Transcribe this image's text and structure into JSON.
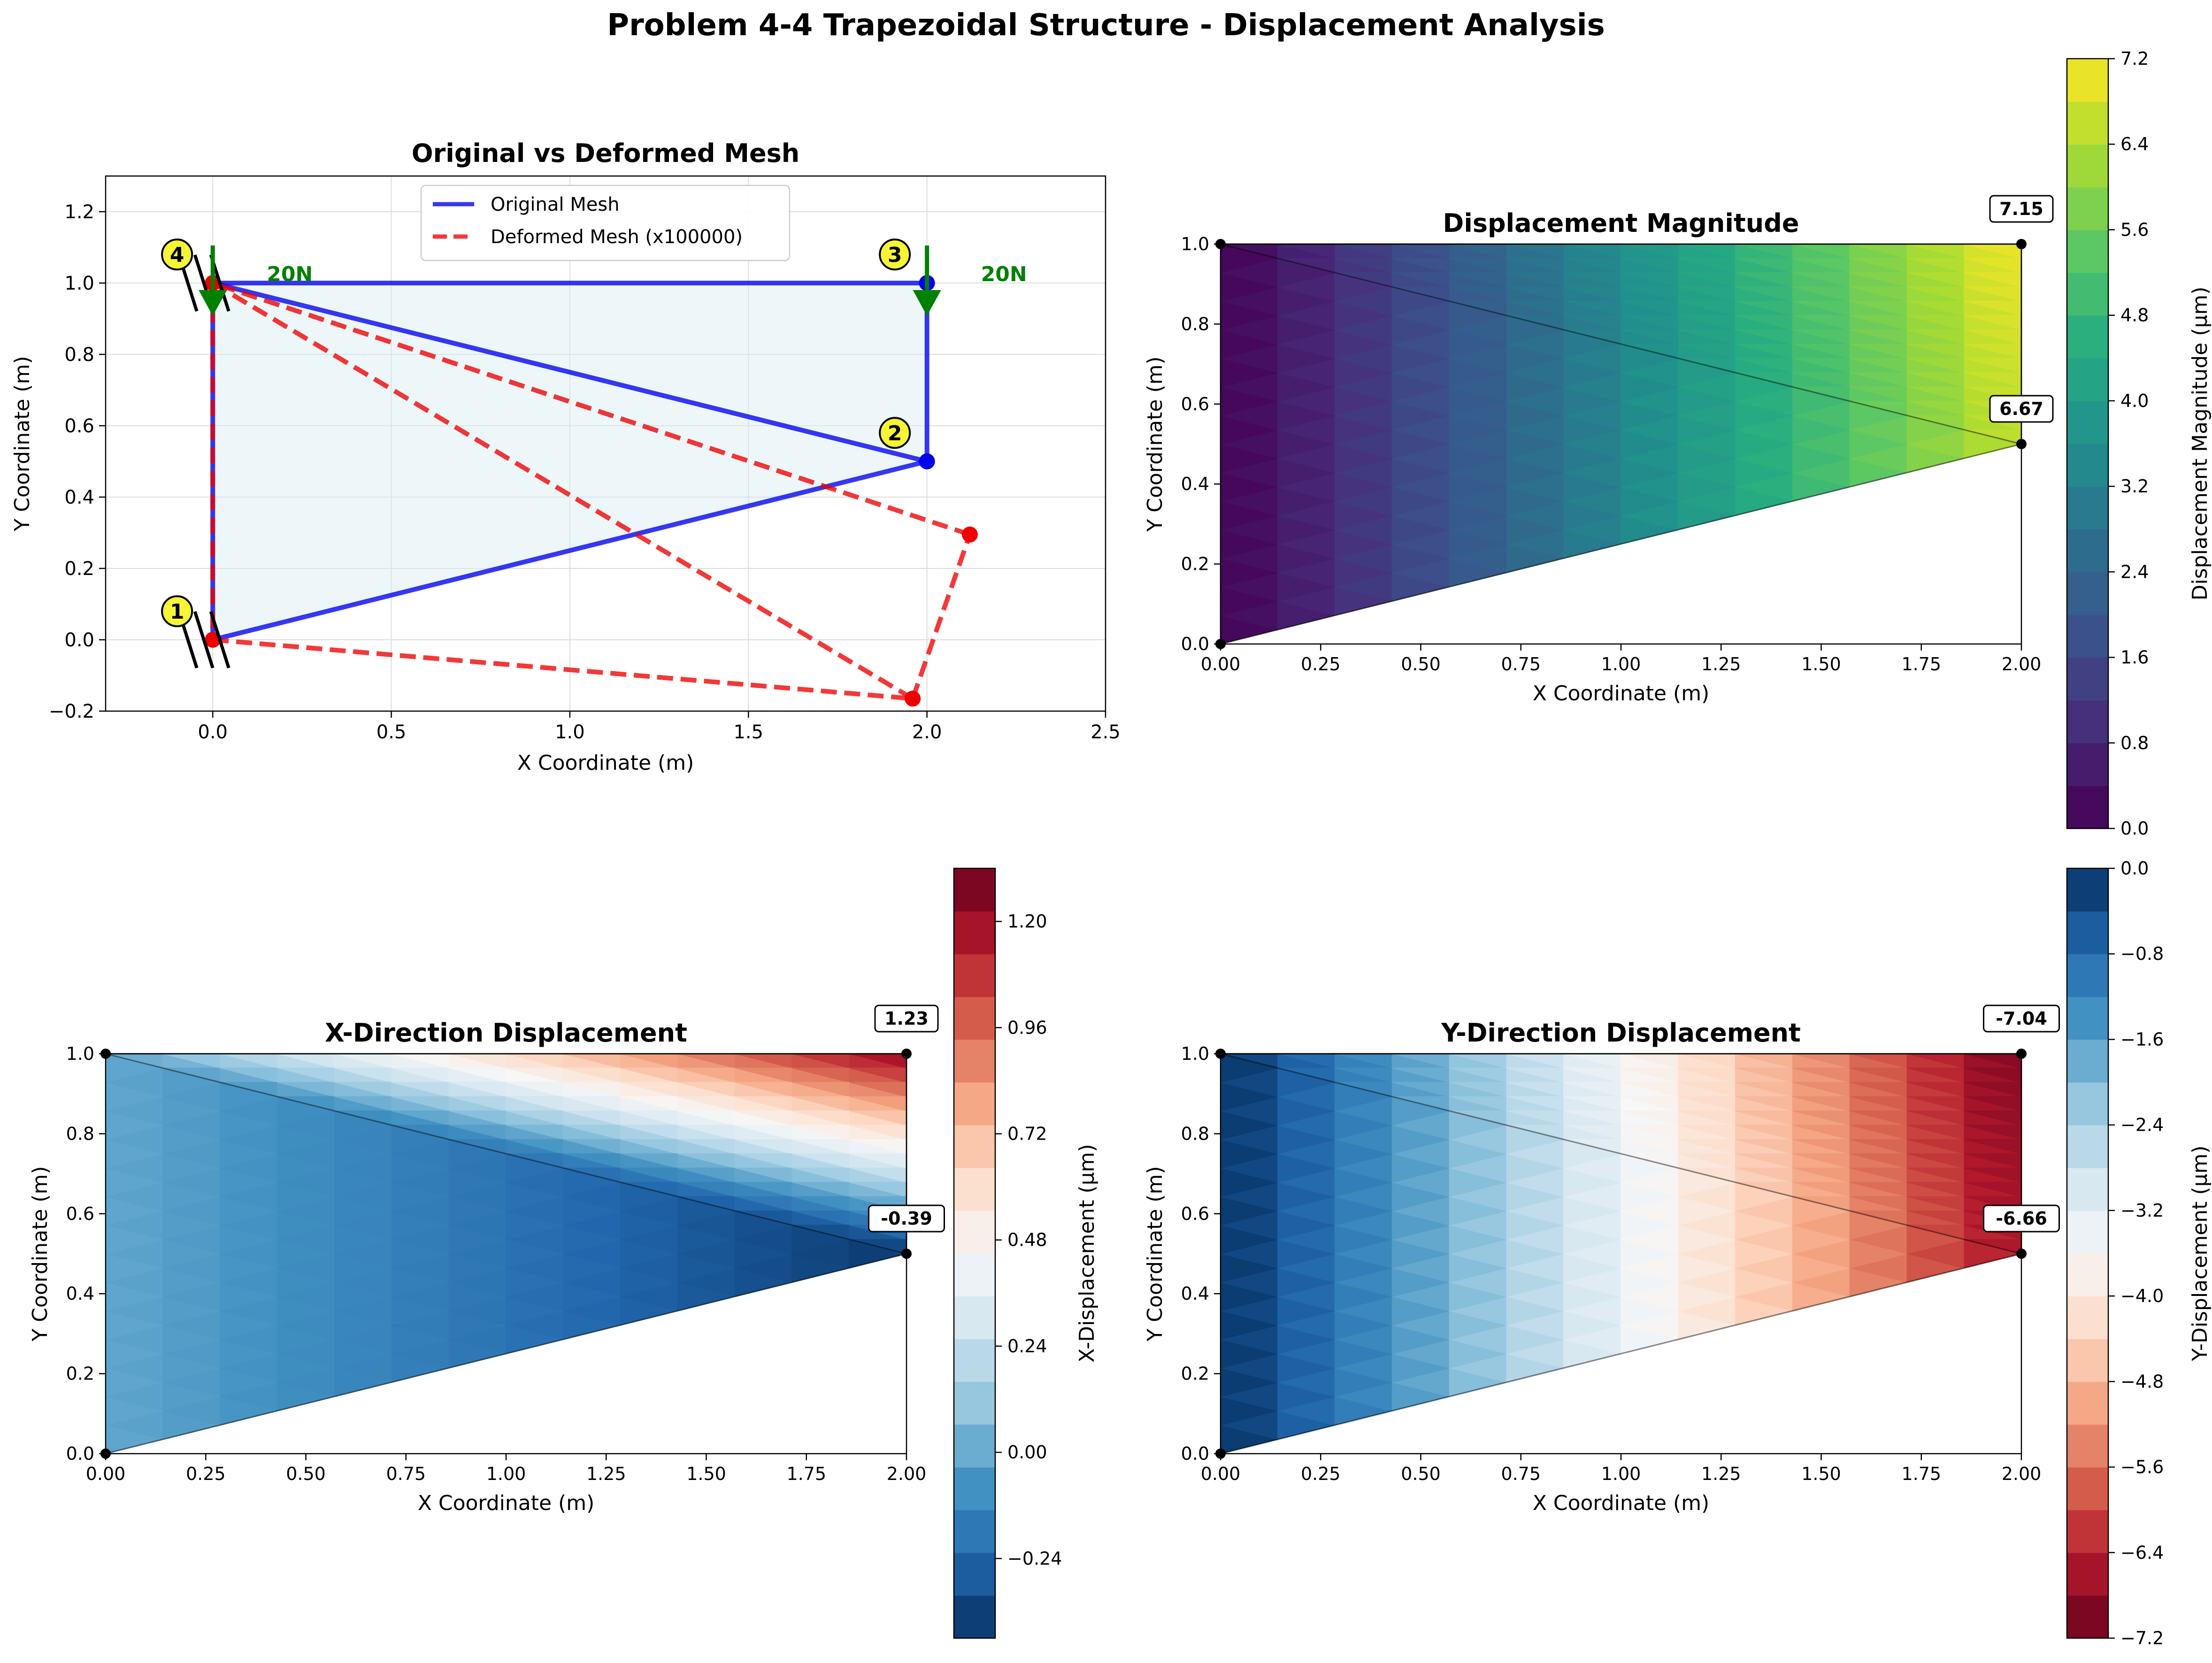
{
  "figure": {
    "title": "Problem 4-4 Trapezoidal Structure - Displacement Analysis",
    "colors": {
      "original": "#0000ee",
      "deformed": "#ee0000",
      "force": "#008000",
      "node_label_fill": "#f5f536"
    }
  },
  "chart_data": [
    {
      "type": "line",
      "title": "Original vs Deformed Mesh",
      "xlabel": "X Coordinate (m)",
      "ylabel": "Y Coordinate (m)",
      "xlim": [
        -0.3,
        2.5
      ],
      "ylim": [
        -0.2,
        1.3
      ],
      "xticks": [
        "0.0",
        "0.5",
        "1.0",
        "1.5",
        "2.0",
        "2.5"
      ],
      "yticks": [
        "−0.2",
        "0.0",
        "0.2",
        "0.4",
        "0.6",
        "0.8",
        "1.0",
        "1.2"
      ],
      "grid": true,
      "legend": "top-center",
      "series": [
        {
          "name": "Original Mesh",
          "style": "solid",
          "color": "#0000ee",
          "segments": [
            [
              [
                0,
                0
              ],
              [
                2,
                0.5
              ]
            ],
            [
              [
                2,
                0.5
              ],
              [
                2,
                1
              ]
            ],
            [
              [
                2,
                1
              ],
              [
                0,
                1
              ]
            ],
            [
              [
                0,
                1
              ],
              [
                0,
                0
              ]
            ],
            [
              [
                0,
                1
              ],
              [
                2,
                0.5
              ]
            ]
          ]
        },
        {
          "name": "Deformed Mesh (x100000)",
          "style": "dashed",
          "color": "#ee0000",
          "segments": [
            [
              [
                0,
                0
              ],
              [
                1.96,
                -0.165
              ]
            ],
            [
              [
                1.96,
                -0.165
              ],
              [
                2.12,
                0.295
              ]
            ],
            [
              [
                2.12,
                0.295
              ],
              [
                0,
                1
              ]
            ],
            [
              [
                0,
                1
              ],
              [
                0,
                0
              ]
            ],
            [
              [
                0,
                1
              ],
              [
                1.96,
                -0.165
              ]
            ]
          ]
        }
      ],
      "original_nodes": [
        [
          2,
          0.5
        ],
        [
          2,
          1
        ]
      ],
      "deformed_nodes": [
        [
          0,
          0
        ],
        [
          0,
          1
        ],
        [
          1.96,
          -0.165
        ],
        [
          2.12,
          0.295
        ]
      ],
      "node_labels": [
        {
          "text": "1",
          "x": -0.1,
          "y": 0.08
        },
        {
          "text": "2",
          "x": 1.91,
          "y": 0.58
        },
        {
          "text": "3",
          "x": 1.91,
          "y": 1.08
        },
        {
          "text": "4",
          "x": -0.1,
          "y": 1.08
        }
      ],
      "forces": [
        {
          "label": "20N",
          "x": 0,
          "y": 1
        },
        {
          "label": "20N",
          "x": 2,
          "y": 1
        }
      ]
    },
    {
      "type": "heatmap",
      "title": "Displacement Magnitude",
      "xlabel": "X Coordinate (m)",
      "ylabel": "Y Coordinate (m)",
      "xlim": [
        0,
        2
      ],
      "ylim": [
        0,
        1
      ],
      "xticks": [
        "0.00",
        "0.25",
        "0.50",
        "0.75",
        "1.00",
        "1.25",
        "1.50",
        "1.75",
        "2.00"
      ],
      "yticks": [
        "0.0",
        "0.2",
        "0.4",
        "0.6",
        "0.8",
        "1.0"
      ],
      "colorbar_label": "Displacement Magnitude (μm)",
      "colormap": "viridis",
      "levels": [
        0,
        7.2
      ],
      "colorbar_ticks": [
        "0.0",
        "0.8",
        "1.6",
        "2.4",
        "3.2",
        "4.0",
        "4.8",
        "5.6",
        "6.4",
        "7.2"
      ],
      "nodal_values": {
        "n1": 0,
        "n2": 6.67,
        "n3": 7.15,
        "n4": 0
      },
      "annotations": [
        {
          "text": "7.15",
          "x": 2,
          "y": 1
        },
        {
          "text": "6.67",
          "x": 2,
          "y": 0.5
        }
      ]
    },
    {
      "type": "heatmap",
      "title": "X-Direction Displacement",
      "xlabel": "X Coordinate (m)",
      "ylabel": "Y Coordinate (m)",
      "xlim": [
        0,
        2
      ],
      "ylim": [
        0,
        1
      ],
      "xticks": [
        "0.00",
        "0.25",
        "0.50",
        "0.75",
        "1.00",
        "1.25",
        "1.50",
        "1.75",
        "2.00"
      ],
      "yticks": [
        "0.0",
        "0.2",
        "0.4",
        "0.6",
        "0.8",
        "1.0"
      ],
      "colorbar_label": "X-Displacement (μm)",
      "colormap": "RdBu_r",
      "levels": [
        -0.42,
        1.32
      ],
      "colorbar_ticks": [
        "−0.24",
        "0.00",
        "0.24",
        "0.48",
        "0.72",
        "0.96",
        "1.20"
      ],
      "colorbar_tick_values": [
        -0.24,
        0,
        0.24,
        0.48,
        0.72,
        0.96,
        1.2
      ],
      "nodal_values": {
        "n1": 0,
        "n2": -0.39,
        "n3": 1.23,
        "n4": 0
      },
      "annotations": [
        {
          "text": "1.23",
          "x": 2,
          "y": 1
        },
        {
          "text": "-0.39",
          "x": 2,
          "y": 0.5
        }
      ]
    },
    {
      "type": "heatmap",
      "title": "Y-Direction Displacement",
      "xlabel": "X Coordinate (m)",
      "ylabel": "Y Coordinate (m)",
      "xlim": [
        0,
        2
      ],
      "ylim": [
        0,
        1
      ],
      "xticks": [
        "0.00",
        "0.25",
        "0.50",
        "0.75",
        "1.00",
        "1.25",
        "1.50",
        "1.75",
        "2.00"
      ],
      "yticks": [
        "0.0",
        "0.2",
        "0.4",
        "0.6",
        "0.8",
        "1.0"
      ],
      "colorbar_label": "Y-Displacement (μm)",
      "colormap": "RdBu",
      "levels": [
        -7.2,
        0
      ],
      "colorbar_ticks": [
        "−7.2",
        "−6.4",
        "−5.6",
        "−4.8",
        "−4.0",
        "−3.2",
        "−2.4",
        "−1.6",
        "−0.8",
        "0.0"
      ],
      "nodal_values": {
        "n1": 0,
        "n2": -6.66,
        "n3": -7.04,
        "n4": 0
      },
      "annotations": [
        {
          "text": "-7.04",
          "x": 2,
          "y": 1
        },
        {
          "text": "-6.66",
          "x": 2,
          "y": 0.5
        }
      ]
    }
  ]
}
